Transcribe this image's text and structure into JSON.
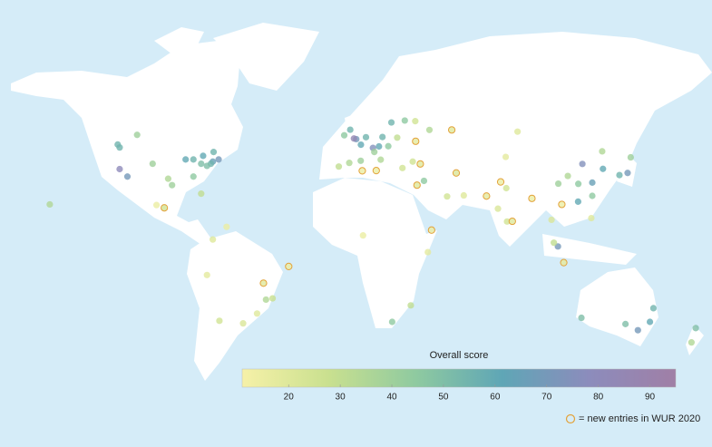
{
  "chart_data": {
    "type": "scatter-map",
    "colorbar": {
      "title": "Overall score",
      "lim": [
        11,
        95
      ],
      "ticks": [
        20,
        30,
        40,
        50,
        60,
        70,
        80,
        90
      ],
      "colors": [
        "#f6f1a8",
        "#c9e08f",
        "#8fcaa0",
        "#5fa6b6",
        "#8c8cbc",
        "#a07fa6"
      ]
    },
    "new_entry_color": "#e3a23a",
    "legend_note": "= new entries in WUR 2020",
    "points": [
      {
        "lon": -71,
        "lat": 42,
        "score": 70,
        "new": false
      },
      {
        "lon": -74,
        "lat": 41,
        "score": 65,
        "new": false
      },
      {
        "lon": -75,
        "lat": 40,
        "score": 55,
        "new": false
      },
      {
        "lon": -77,
        "lat": 39,
        "score": 50,
        "new": false
      },
      {
        "lon": -88,
        "lat": 42,
        "score": 60,
        "new": false
      },
      {
        "lon": -84,
        "lat": 42,
        "score": 55,
        "new": false
      },
      {
        "lon": -80,
        "lat": 40,
        "score": 50,
        "new": false
      },
      {
        "lon": -84,
        "lat": 34,
        "score": 45,
        "new": false
      },
      {
        "lon": -95,
        "lat": 30,
        "score": 40,
        "new": false
      },
      {
        "lon": -97,
        "lat": 33,
        "score": 35,
        "new": false
      },
      {
        "lon": -105,
        "lat": 40,
        "score": 40,
        "new": false
      },
      {
        "lon": -122,
        "lat": 37.5,
        "score": 80,
        "new": false
      },
      {
        "lon": -118,
        "lat": 34,
        "score": 70,
        "new": false
      },
      {
        "lon": -122,
        "lat": 47.6,
        "score": 55,
        "new": false
      },
      {
        "lon": -79,
        "lat": 43.7,
        "score": 60,
        "new": false
      },
      {
        "lon": -73.6,
        "lat": 45.5,
        "score": 55,
        "new": false
      },
      {
        "lon": -123,
        "lat": 49,
        "score": 55,
        "new": false
      },
      {
        "lon": -113,
        "lat": 53.5,
        "score": 40,
        "new": false
      },
      {
        "lon": -80,
        "lat": 26,
        "score": 30,
        "new": false
      },
      {
        "lon": -99,
        "lat": 19.4,
        "score": 25,
        "new": true
      },
      {
        "lon": -103,
        "lat": 20.7,
        "score": 15,
        "new": false
      },
      {
        "lon": -158,
        "lat": 21,
        "score": 35,
        "new": false
      },
      {
        "lon": -74,
        "lat": 4.6,
        "score": 20,
        "new": false
      },
      {
        "lon": -77,
        "lat": -12,
        "score": 18,
        "new": false
      },
      {
        "lon": -70.6,
        "lat": -33.4,
        "score": 25,
        "new": false
      },
      {
        "lon": -58.4,
        "lat": -34.6,
        "score": 22,
        "new": false
      },
      {
        "lon": -46.6,
        "lat": -23.5,
        "score": 35,
        "new": false
      },
      {
        "lon": -43.2,
        "lat": -22.9,
        "score": 28,
        "new": false
      },
      {
        "lon": -47.9,
        "lat": -15.8,
        "score": 20,
        "new": true
      },
      {
        "lon": -34.9,
        "lat": -8,
        "score": 15,
        "new": true
      },
      {
        "lon": -51.2,
        "lat": -30,
        "score": 20,
        "new": false
      },
      {
        "lon": -66.9,
        "lat": 10.5,
        "score": 15,
        "new": false
      },
      {
        "lon": -0.1,
        "lat": 51.5,
        "score": 70,
        "new": false
      },
      {
        "lon": -1.3,
        "lat": 51.8,
        "score": 85,
        "new": false
      },
      {
        "lon": 2.3,
        "lat": 48.9,
        "score": 60,
        "new": false
      },
      {
        "lon": 13.4,
        "lat": 52.5,
        "score": 55,
        "new": false
      },
      {
        "lon": 11.6,
        "lat": 48.1,
        "score": 60,
        "new": false
      },
      {
        "lon": 8.5,
        "lat": 47.4,
        "score": 75,
        "new": false
      },
      {
        "lon": 4.9,
        "lat": 52.4,
        "score": 55,
        "new": false
      },
      {
        "lon": 18,
        "lat": 59.3,
        "score": 55,
        "new": false
      },
      {
        "lon": -3.7,
        "lat": 40.4,
        "score": 35,
        "new": false
      },
      {
        "lon": 2.2,
        "lat": 41.4,
        "score": 40,
        "new": false
      },
      {
        "lon": 12.5,
        "lat": 41.9,
        "score": 35,
        "new": false
      },
      {
        "lon": 9.2,
        "lat": 45.5,
        "score": 40,
        "new": false
      },
      {
        "lon": 16.4,
        "lat": 48.2,
        "score": 45,
        "new": false
      },
      {
        "lon": 21,
        "lat": 52.2,
        "score": 30,
        "new": false
      },
      {
        "lon": 37.6,
        "lat": 55.8,
        "score": 35,
        "new": false
      },
      {
        "lon": 30.3,
        "lat": 59.9,
        "score": 25,
        "new": false
      },
      {
        "lon": 24.9,
        "lat": 60.2,
        "score": 45,
        "new": false
      },
      {
        "lon": 29,
        "lat": 41,
        "score": 25,
        "new": false
      },
      {
        "lon": 32.9,
        "lat": 39.9,
        "score": 20,
        "new": true
      },
      {
        "lon": 23.7,
        "lat": 38,
        "score": 25,
        "new": false
      },
      {
        "lon": -9.1,
        "lat": 38.7,
        "score": 30,
        "new": false
      },
      {
        "lon": -6.3,
        "lat": 53.3,
        "score": 45,
        "new": false
      },
      {
        "lon": -3.2,
        "lat": 55.9,
        "score": 55,
        "new": false
      },
      {
        "lon": 30.5,
        "lat": 50.5,
        "score": 18,
        "new": true
      },
      {
        "lon": 49.1,
        "lat": 55.8,
        "score": 20,
        "new": true
      },
      {
        "lon": 83,
        "lat": 55,
        "score": 20,
        "new": false
      },
      {
        "lon": 51.4,
        "lat": 35.7,
        "score": 22,
        "new": true
      },
      {
        "lon": 46.7,
        "lat": 24.7,
        "score": 25,
        "new": false
      },
      {
        "lon": 31.2,
        "lat": 30,
        "score": 20,
        "new": true
      },
      {
        "lon": 34.8,
        "lat": 32,
        "score": 45,
        "new": false
      },
      {
        "lon": 55.3,
        "lat": 25.2,
        "score": 20,
        "new": false
      },
      {
        "lon": 3.4,
        "lat": 6.5,
        "score": 15,
        "new": false
      },
      {
        "lon": 36.8,
        "lat": -1.3,
        "score": 18,
        "new": false
      },
      {
        "lon": 18.4,
        "lat": -33.9,
        "score": 45,
        "new": false
      },
      {
        "lon": 28,
        "lat": -26.2,
        "score": 30,
        "new": false
      },
      {
        "lon": 10.2,
        "lat": 36.8,
        "score": 15,
        "new": true
      },
      {
        "lon": 3,
        "lat": 36.7,
        "score": 15,
        "new": true
      },
      {
        "lon": 38.7,
        "lat": 9,
        "score": 15,
        "new": true
      },
      {
        "lon": 77.2,
        "lat": 28.6,
        "score": 25,
        "new": false
      },
      {
        "lon": 72.9,
        "lat": 19,
        "score": 22,
        "new": false
      },
      {
        "lon": 77.6,
        "lat": 13,
        "score": 25,
        "new": false
      },
      {
        "lon": 80.3,
        "lat": 13.1,
        "score": 20,
        "new": true
      },
      {
        "lon": 67,
        "lat": 24.9,
        "score": 18,
        "new": true
      },
      {
        "lon": 74.3,
        "lat": 31.5,
        "score": 15,
        "new": true
      },
      {
        "lon": 90.4,
        "lat": 23.8,
        "score": 15,
        "new": true
      },
      {
        "lon": 100.5,
        "lat": 13.8,
        "score": 22,
        "new": false
      },
      {
        "lon": 103.8,
        "lat": 1.35,
        "score": 70,
        "new": false
      },
      {
        "lon": 101.7,
        "lat": 3.1,
        "score": 30,
        "new": false
      },
      {
        "lon": 106.8,
        "lat": -6.2,
        "score": 18,
        "new": true
      },
      {
        "lon": 121,
        "lat": 14.6,
        "score": 20,
        "new": false
      },
      {
        "lon": 105.8,
        "lat": 21,
        "score": 15,
        "new": true
      },
      {
        "lon": 114.2,
        "lat": 22.3,
        "score": 60,
        "new": false
      },
      {
        "lon": 116.4,
        "lat": 39.9,
        "score": 75,
        "new": false
      },
      {
        "lon": 121.5,
        "lat": 31.2,
        "score": 65,
        "new": false
      },
      {
        "lon": 114.3,
        "lat": 30.6,
        "score": 45,
        "new": false
      },
      {
        "lon": 104,
        "lat": 30.7,
        "score": 40,
        "new": false
      },
      {
        "lon": 108.9,
        "lat": 34.3,
        "score": 35,
        "new": false
      },
      {
        "lon": 126.6,
        "lat": 45.8,
        "score": 35,
        "new": false
      },
      {
        "lon": 127,
        "lat": 37.6,
        "score": 60,
        "new": false
      },
      {
        "lon": 139.7,
        "lat": 35.7,
        "score": 70,
        "new": false
      },
      {
        "lon": 135.5,
        "lat": 34.7,
        "score": 55,
        "new": false
      },
      {
        "lon": 141.3,
        "lat": 43,
        "score": 40,
        "new": false
      },
      {
        "lon": 121.5,
        "lat": 25,
        "score": 45,
        "new": false
      },
      {
        "lon": 76.9,
        "lat": 43.2,
        "score": 18,
        "new": false
      },
      {
        "lon": 151.2,
        "lat": -33.9,
        "score": 60,
        "new": false
      },
      {
        "lon": 145,
        "lat": -37.8,
        "score": 70,
        "new": false
      },
      {
        "lon": 153,
        "lat": -27.5,
        "score": 55,
        "new": false
      },
      {
        "lon": 115.9,
        "lat": -32,
        "score": 50,
        "new": false
      },
      {
        "lon": 138.6,
        "lat": -34.9,
        "score": 50,
        "new": false
      },
      {
        "lon": 174.8,
        "lat": -36.8,
        "score": 50,
        "new": false
      },
      {
        "lon": 172.6,
        "lat": -43.5,
        "score": 35,
        "new": false
      }
    ]
  }
}
